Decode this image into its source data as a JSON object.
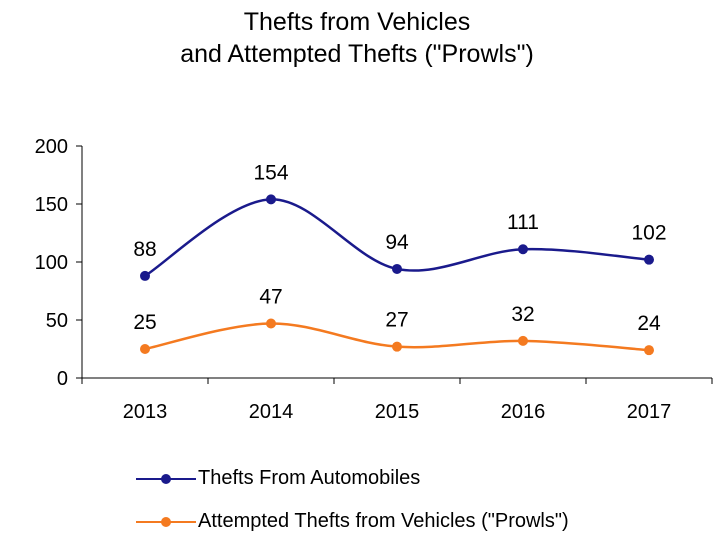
{
  "chart_data": {
    "type": "line",
    "title_line1": "Thefts from Vehicles",
    "title_line2": "and Attempted Thefts (\"Prowls\")",
    "categories": [
      "2013",
      "2014",
      "2015",
      "2016",
      "2017"
    ],
    "ylim": [
      0,
      200
    ],
    "yticks": [
      "0",
      "50",
      "100",
      "150",
      "200"
    ],
    "grid": false,
    "legend_position": "bottom",
    "smooth": true,
    "series": [
      {
        "name": "Thefts From Automobiles",
        "values": [
          88,
          154,
          94,
          111,
          102
        ],
        "color": "#1a1a8c"
      },
      {
        "name": "Attempted Thefts from Vehicles (\"Prowls\")",
        "values": [
          25,
          47,
          27,
          32,
          24
        ],
        "color": "#f47a20"
      }
    ]
  }
}
